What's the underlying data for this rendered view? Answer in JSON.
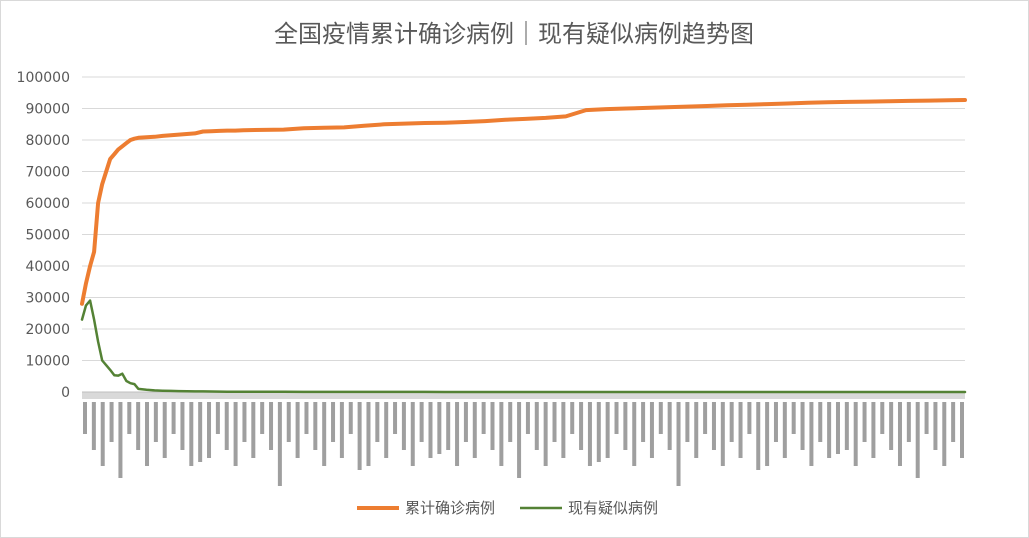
{
  "chart_data": {
    "type": "line",
    "title": "全国疫情累计确诊病例｜现有疑似病例趋势图",
    "xlabel": "",
    "ylabel": "",
    "ylim": [
      0,
      100000
    ],
    "yticks": [
      "0",
      "10000",
      "20000",
      "30000",
      "40000",
      "50000",
      "60000",
      "70000",
      "80000",
      "90000",
      "100000"
    ],
    "grid": true,
    "legend_position": "bottom",
    "x_tick_labels_legible": false,
    "x": [
      0,
      1,
      2,
      3,
      4,
      5,
      6,
      7,
      8,
      9,
      10,
      11,
      12,
      13,
      14,
      16,
      18,
      20,
      22,
      24,
      26,
      28,
      30,
      32,
      34,
      36,
      38,
      40,
      45,
      50,
      55,
      60,
      65,
      70,
      75,
      80,
      85,
      90,
      95,
      100,
      105,
      110,
      115,
      120,
      125,
      130,
      135,
      140,
      145,
      150,
      155,
      160,
      165,
      170,
      175,
      180,
      185,
      190,
      195,
      200,
      205,
      210,
      215,
      219
    ],
    "series": [
      {
        "name": "累计确诊病例",
        "color": "#ed7d31",
        "values": [
          28000,
          34500,
          40000,
          44500,
          60000,
          66000,
          70000,
          74000,
          75500,
          77000,
          78000,
          79000,
          80000,
          80400,
          80700,
          80900,
          81000,
          81300,
          81500,
          81700,
          81900,
          82100,
          82700,
          82800,
          82900,
          83000,
          83000,
          83100,
          83200,
          83300,
          83700,
          83900,
          84000,
          84500,
          85000,
          85200,
          85400,
          85500,
          85700,
          86000,
          86400,
          86700,
          87000,
          87500,
          89500,
          89800,
          90000,
          90200,
          90400,
          90600,
          90800,
          91000,
          91200,
          91400,
          91600,
          91800,
          92000,
          92100,
          92200,
          92300,
          92400,
          92500,
          92600,
          92700
        ]
      },
      {
        "name": "现有疑似病例",
        "color": "#548235",
        "values": [
          23000,
          27500,
          29000,
          23000,
          16000,
          10000,
          8500,
          7000,
          5300,
          5200,
          5800,
          3500,
          2800,
          2500,
          1000,
          700,
          500,
          400,
          350,
          300,
          250,
          200,
          180,
          150,
          120,
          100,
          90,
          80,
          60,
          50,
          40,
          30,
          30,
          25,
          20,
          20,
          20,
          15,
          15,
          15,
          10,
          10,
          10,
          10,
          10,
          10,
          10,
          10,
          10,
          10,
          10,
          10,
          10,
          10,
          10,
          10,
          10,
          10,
          10,
          10,
          10,
          10,
          10,
          10
        ]
      }
    ]
  }
}
